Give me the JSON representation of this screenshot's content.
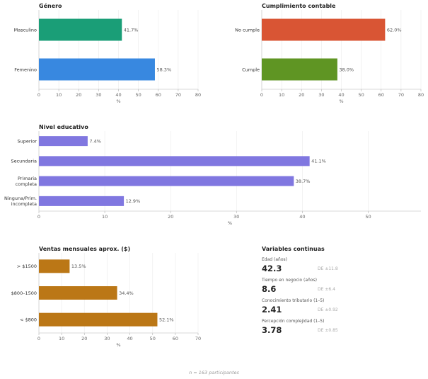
{
  "chart_data": [
    {
      "id": "gender",
      "type": "bar",
      "orientation": "horizontal",
      "title": "Género",
      "xlabel": "%",
      "categories": [
        "Masculino",
        "Femenino"
      ],
      "values": [
        41.7,
        58.3
      ],
      "value_labels": [
        "41.7%",
        "58.3%"
      ],
      "colors": [
        "#1a9e77",
        "#3888e0"
      ],
      "xlim": [
        0,
        80
      ],
      "xticks": [
        0,
        10,
        20,
        30,
        40,
        50,
        60,
        70,
        80
      ],
      "grid": true
    },
    {
      "id": "compliance",
      "type": "bar",
      "orientation": "horizontal",
      "title": "Cumplimiento contable",
      "xlabel": "%",
      "categories": [
        "No cumple",
        "Cumple"
      ],
      "values": [
        62.0,
        38.0
      ],
      "value_labels": [
        "62.0%",
        "38.0%"
      ],
      "colors": [
        "#d95534",
        "#5f9523"
      ],
      "xlim": [
        0,
        80
      ],
      "xticks": [
        0,
        10,
        20,
        30,
        40,
        50,
        60,
        70,
        80
      ],
      "grid": true
    },
    {
      "id": "education",
      "type": "bar",
      "orientation": "horizontal",
      "title": "Nivel educativo",
      "xlabel": "%",
      "categories": [
        "Superior",
        "Secundaria",
        [
          "Primaria",
          "completa"
        ],
        [
          "Ninguna/Prim.",
          "incompleta"
        ]
      ],
      "values": [
        7.4,
        41.1,
        38.7,
        12.9
      ],
      "value_labels": [
        "7.4%",
        "41.1%",
        "38.7%",
        "12.9%"
      ],
      "colors": [
        "#8077e0",
        "#8077e0",
        "#8077e0",
        "#8077e0"
      ],
      "xlim": [
        0,
        58
      ],
      "xticks": [
        0,
        10,
        20,
        30,
        40,
        50
      ],
      "grid": true
    },
    {
      "id": "sales",
      "type": "bar",
      "orientation": "horizontal",
      "title": "Ventas mensuales aprox. ($)",
      "xlabel": "%",
      "categories": [
        "> $1500",
        "$800–1500",
        "< $800"
      ],
      "values": [
        13.5,
        34.4,
        52.1
      ],
      "value_labels": [
        "13.5%",
        "34.4%",
        "52.1%"
      ],
      "colors": [
        "#bb7716",
        "#bb7716",
        "#bb7716"
      ],
      "xlim": [
        0,
        70
      ],
      "xticks": [
        0,
        10,
        20,
        30,
        40,
        50,
        60,
        70
      ],
      "grid": true
    }
  ],
  "continuous": {
    "title": "Variables continuas",
    "items": [
      {
        "label": "Edad (años)",
        "value": "42.3",
        "sd": "DE ±11.8"
      },
      {
        "label": "Tiempo en negocio (años)",
        "value": "8.6",
        "sd": "DE ±6.4"
      },
      {
        "label": "Conocimiento tributario (1–5)",
        "value": "2.41",
        "sd": "DE ±0.92"
      },
      {
        "label": "Percepción complejidad (1–5)",
        "value": "3.78",
        "sd": "DE ±0.85"
      }
    ]
  },
  "footnote": "n = 163 participantes"
}
